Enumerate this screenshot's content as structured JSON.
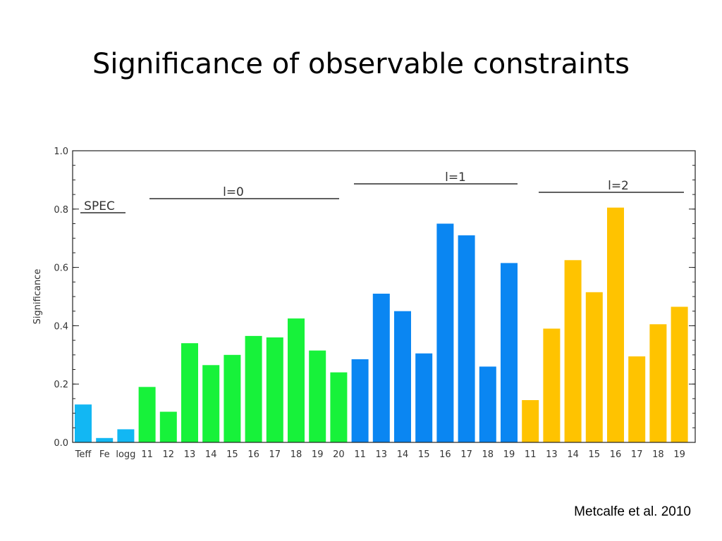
{
  "slide": {
    "title": "Significance of observable constraints",
    "citation": "Metcalfe et al. 2010"
  },
  "colors": {
    "SPEC": "#12b7f3",
    "l=0": "#17f23a",
    "l=1": "#0a86f2",
    "l=2": "#ffc300"
  },
  "chart_data": {
    "type": "bar",
    "ylabel": "Significance",
    "ylim": [
      0.0,
      1.0
    ],
    "yticks": [
      "0.0",
      "0.2",
      "0.4",
      "0.6",
      "0.8",
      "1.0"
    ],
    "grid": false,
    "groups": [
      {
        "label": "SPEC",
        "color_key": "SPEC",
        "categories": [
          "Teff",
          "Fe",
          "logg"
        ],
        "values": [
          0.13,
          0.015,
          0.045
        ]
      },
      {
        "label": "l=0",
        "color_key": "l=0",
        "categories": [
          "11",
          "12",
          "13",
          "14",
          "15",
          "16",
          "17",
          "18",
          "19",
          "20"
        ],
        "values": [
          0.19,
          0.105,
          0.34,
          0.265,
          0.3,
          0.365,
          0.36,
          0.425,
          0.315,
          0.24
        ]
      },
      {
        "label": "l=1",
        "color_key": "l=1",
        "categories": [
          "11",
          "13",
          "14",
          "15",
          "16",
          "17",
          "18",
          "19"
        ],
        "values": [
          0.285,
          0.51,
          0.45,
          0.305,
          0.75,
          0.71,
          0.26,
          0.615
        ]
      },
      {
        "label": "l=2",
        "color_key": "l=2",
        "categories": [
          "11",
          "13",
          "14",
          "15",
          "16",
          "17",
          "18",
          "19"
        ],
        "values": [
          0.145,
          0.39,
          0.625,
          0.515,
          0.805,
          0.295,
          0.405,
          0.465
        ]
      }
    ]
  }
}
